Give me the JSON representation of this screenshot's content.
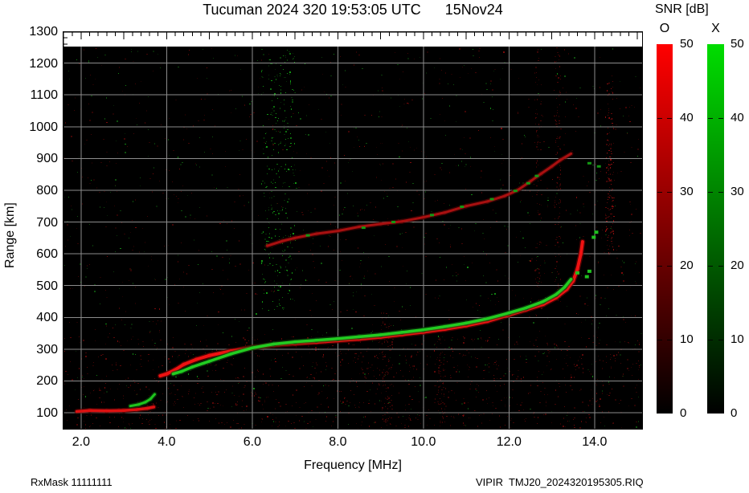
{
  "header": {
    "title": "Tucuman 2024 320 19:53:05 UTC      15Nov24"
  },
  "footer": {
    "left": "RxMask 11111111",
    "right": "VIPIR  TMJ20_2024320195305.RIQ"
  },
  "legend": {
    "title": "SNR [dB]",
    "o_label": "O",
    "x_label": "X",
    "ticks": [
      0,
      10,
      20,
      30,
      40,
      50
    ],
    "o_color_top": "#ff0000",
    "x_color_top": "#00dd00",
    "bar_bottom_color": "#000000",
    "value_min": 0,
    "value_max": 50
  },
  "chart_data": {
    "type": "heatmap",
    "title": "Tucuman 2024 320 19:53:05 UTC      15Nov24",
    "xlabel": "Frequency [MHz]",
    "ylabel": "Range [km]",
    "xlim": [
      1.57,
      15.13
    ],
    "ylim": [
      47,
      1300
    ],
    "data_region_km": [
      47,
      1252
    ],
    "xticks": [
      2,
      4,
      6,
      8,
      10,
      12,
      14
    ],
    "xtick_labels": [
      "2.0",
      "4.0",
      "6.0",
      "8.0",
      "10.0",
      "12.0",
      "14.0"
    ],
    "yticks": [
      100,
      200,
      300,
      400,
      500,
      600,
      700,
      800,
      900,
      1000,
      1100,
      1200,
      1300
    ],
    "ytick_labels": [
      "100",
      "200",
      "300",
      "400",
      "500",
      "600",
      "700",
      "800",
      "900",
      "1000",
      "1100",
      "1200",
      "1300"
    ],
    "grid": true,
    "grid_color": "#8c8c8c",
    "background": "#000000",
    "minor_tick_mhz": 0.2,
    "minor_tick_km": 20,
    "legend_position": "right",
    "series": [
      {
        "name": "E-region O-trace",
        "mode": "O",
        "style": "line",
        "color": "#dd1111",
        "halo": "#5a0505",
        "width": 3.5,
        "points": [
          [
            1.9,
            104
          ],
          [
            2.2,
            107
          ],
          [
            2.6,
            106
          ],
          [
            3.0,
            107
          ],
          [
            3.3,
            110
          ],
          [
            3.55,
            114
          ],
          [
            3.7,
            118
          ]
        ]
      },
      {
        "name": "E-region X-trace",
        "mode": "X",
        "style": "line",
        "color": "#1ec41e",
        "halo": "#0a4a0a",
        "width": 3,
        "points": [
          [
            3.15,
            121
          ],
          [
            3.35,
            126
          ],
          [
            3.5,
            133
          ],
          [
            3.62,
            143
          ],
          [
            3.72,
            158
          ]
        ]
      },
      {
        "name": "F-region O-trace",
        "mode": "O",
        "style": "line",
        "color": "#ee1212",
        "halo": "#6a0404",
        "width": 4,
        "points": [
          [
            3.85,
            216
          ],
          [
            4.0,
            222
          ],
          [
            4.2,
            235
          ],
          [
            4.4,
            252
          ],
          [
            4.7,
            268
          ],
          [
            5.0,
            280
          ],
          [
            5.5,
            294
          ],
          [
            6.0,
            305
          ],
          [
            6.5,
            313
          ],
          [
            7.0,
            318
          ],
          [
            7.5,
            322
          ],
          [
            8.0,
            327
          ],
          [
            8.5,
            332
          ],
          [
            9.0,
            338
          ],
          [
            9.5,
            346
          ],
          [
            10.0,
            354
          ],
          [
            10.5,
            363
          ],
          [
            11.0,
            374
          ],
          [
            11.5,
            388
          ],
          [
            12.0,
            408
          ],
          [
            12.4,
            424
          ],
          [
            12.8,
            441
          ],
          [
            13.1,
            462
          ],
          [
            13.35,
            488
          ],
          [
            13.5,
            515
          ],
          [
            13.6,
            552
          ],
          [
            13.68,
            600
          ],
          [
            13.72,
            638
          ]
        ]
      },
      {
        "name": "F-region X-trace",
        "mode": "X",
        "style": "line",
        "color": "#22cc22",
        "halo": "#0b4d0b",
        "width": 3.5,
        "points": [
          [
            4.15,
            222
          ],
          [
            4.35,
            230
          ],
          [
            4.6,
            244
          ],
          [
            5.0,
            262
          ],
          [
            5.5,
            285
          ],
          [
            6.0,
            304
          ],
          [
            6.5,
            316
          ],
          [
            7.0,
            323
          ],
          [
            7.5,
            328
          ],
          [
            8.0,
            333
          ],
          [
            8.5,
            339
          ],
          [
            9.0,
            345
          ],
          [
            9.5,
            353
          ],
          [
            10.0,
            361
          ],
          [
            10.5,
            371
          ],
          [
            11.0,
            382
          ],
          [
            11.5,
            396
          ],
          [
            12.0,
            414
          ],
          [
            12.4,
            430
          ],
          [
            12.8,
            450
          ],
          [
            13.1,
            472
          ],
          [
            13.3,
            495
          ],
          [
            13.45,
            520
          ]
        ]
      },
      {
        "name": "F-region X-trace spread",
        "mode": "X",
        "style": "dots",
        "color": "#1fc01f",
        "size": [
          5,
          4
        ],
        "points": [
          [
            13.6,
            540
          ],
          [
            13.82,
            528
          ],
          [
            13.88,
            545
          ],
          [
            13.98,
            652
          ],
          [
            14.04,
            668
          ]
        ]
      },
      {
        "name": "second-hop O-trace",
        "mode": "O",
        "style": "line",
        "color": "#a81010",
        "halo": "#4a0404",
        "width": 3,
        "points": [
          [
            6.35,
            625
          ],
          [
            6.7,
            640
          ],
          [
            7.0,
            650
          ],
          [
            7.5,
            663
          ],
          [
            8.0,
            672
          ],
          [
            8.5,
            685
          ],
          [
            9.0,
            694
          ],
          [
            9.5,
            702
          ],
          [
            10.0,
            715
          ],
          [
            10.5,
            730
          ],
          [
            11.0,
            750
          ],
          [
            11.5,
            765
          ],
          [
            11.9,
            782
          ],
          [
            12.2,
            800
          ],
          [
            12.5,
            828
          ],
          [
            12.75,
            852
          ],
          [
            13.0,
            875
          ],
          [
            13.2,
            895
          ],
          [
            13.45,
            915
          ]
        ]
      },
      {
        "name": "second-hop X-trace",
        "mode": "X",
        "style": "dots",
        "color": "#149914",
        "size": [
          5,
          3
        ],
        "points": [
          [
            7.3,
            658
          ],
          [
            8.6,
            682
          ],
          [
            9.3,
            700
          ],
          [
            10.2,
            722
          ],
          [
            10.9,
            748
          ],
          [
            11.6,
            772
          ],
          [
            12.15,
            798
          ],
          [
            12.45,
            822
          ],
          [
            12.65,
            845
          ],
          [
            13.88,
            885
          ],
          [
            14.1,
            875
          ]
        ]
      }
    ]
  },
  "noise": {
    "seed": 7,
    "speckle": [
      {
        "count": 900,
        "km": [
          47,
          1252
        ],
        "colors": [
          "#1f0202",
          "#2e0303",
          "#420505"
        ]
      },
      {
        "count": 520,
        "km": [
          47,
          1252
        ],
        "colors": [
          "#062406",
          "#0a3a0a",
          "#0e4f0e"
        ]
      },
      {
        "count": 900,
        "km": [
          47,
          340
        ],
        "colors": [
          "#2a0303",
          "#3f0606",
          "#5a0808"
        ]
      },
      {
        "count": 120,
        "km": [
          47,
          1252
        ],
        "colors": [
          "#7a0a0a",
          "#128412"
        ]
      }
    ],
    "bands": [
      {
        "f": [
          6.2,
          7.0
        ],
        "km": [
          420,
          1250
        ],
        "count": 320,
        "colors": [
          "#0a4a0a",
          "#0e6b0e",
          "#139413",
          "#062806"
        ]
      },
      {
        "f": [
          13.05,
          13.2
        ],
        "km": [
          450,
          1250
        ],
        "count": 120,
        "colors": [
          "#330404",
          "#4d0606"
        ]
      },
      {
        "f": [
          14.25,
          14.45
        ],
        "km": [
          600,
          1150
        ],
        "count": 140,
        "colors": [
          "#3c0505",
          "#5f0808",
          "#8a0d0d"
        ]
      },
      {
        "f": [
          9.0,
          9.25
        ],
        "km": [
          60,
          420
        ],
        "count": 90,
        "colors": [
          "#330404",
          "#470606"
        ]
      },
      {
        "f": [
          12.6,
          12.75
        ],
        "km": [
          400,
          1250
        ],
        "count": 90,
        "colors": [
          "#300404",
          "#450606"
        ]
      },
      {
        "f": [
          10.3,
          10.5
        ],
        "km": [
          60,
          350
        ],
        "count": 60,
        "colors": [
          "#2d0303",
          "#400505"
        ]
      }
    ]
  }
}
